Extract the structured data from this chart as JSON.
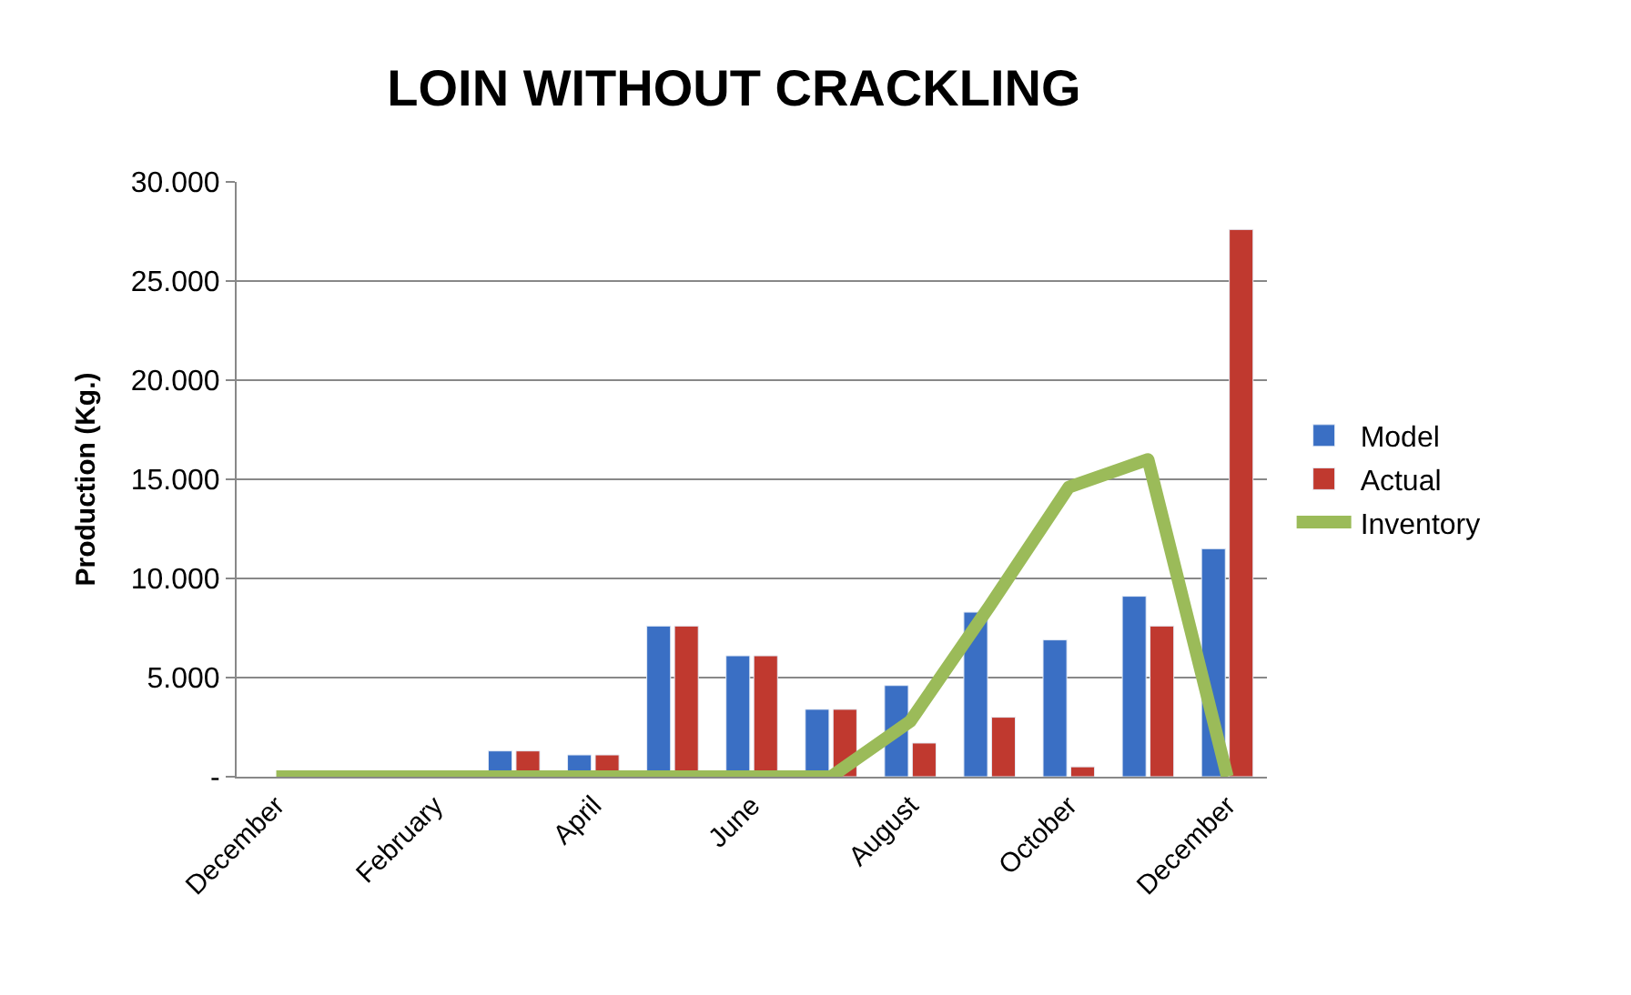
{
  "chart_data": {
    "type": "bar",
    "title": "LOIN WITHOUT CRACKLING",
    "ylabel": "Production (Kg.)",
    "categories": [
      "December",
      null,
      "February",
      null,
      "April",
      null,
      "June",
      null,
      "August",
      null,
      "October",
      null,
      "December"
    ],
    "series": [
      {
        "name": "Model",
        "color": "#3a6fc4",
        "values": [
          null,
          null,
          null,
          1300,
          1100,
          7600,
          6100,
          3400,
          4600,
          8300,
          6900,
          9100,
          11500
        ]
      },
      {
        "name": "Actual",
        "color": "#c0392f",
        "values": [
          null,
          null,
          null,
          1300,
          1100,
          7600,
          6100,
          3400,
          1700,
          3000,
          500,
          7600,
          27600
        ]
      },
      {
        "name": "Inventory",
        "type": "line",
        "color": "#9bbb59",
        "values": [
          0,
          0,
          0,
          0,
          0,
          0,
          0,
          0,
          2800,
          8600,
          14600,
          16000,
          0
        ]
      }
    ],
    "ylim": [
      0,
      30000
    ],
    "yticks": [
      {
        "value": 0,
        "label": "-"
      },
      {
        "value": 5000,
        "label": "5.000"
      },
      {
        "value": 10000,
        "label": "10.000"
      },
      {
        "value": 15000,
        "label": "15.000"
      },
      {
        "value": 20000,
        "label": "20.000"
      },
      {
        "value": 25000,
        "label": "25.000"
      },
      {
        "value": 30000,
        "label": "30.000"
      }
    ],
    "grid": "y",
    "legend": "right"
  }
}
